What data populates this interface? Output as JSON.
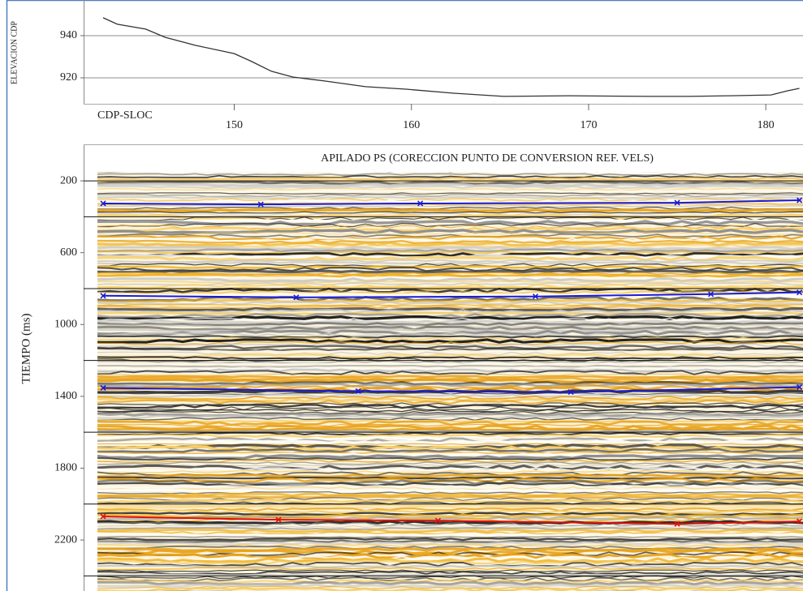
{
  "chart_data": [
    {
      "type": "line",
      "y_label": "ELEVACION CDP",
      "x_label": "CDP-SLOC",
      "xlim": [
        141.5,
        182.1
      ],
      "xticks": [
        150,
        160,
        170,
        180
      ],
      "ylim": [
        907.7,
        956.9
      ],
      "yticks": [
        920,
        940
      ],
      "grid": true,
      "series": [
        {
          "color": "#333333",
          "x": [
            142.6,
            143.4,
            145.0,
            146.1,
            147.8,
            150.0,
            151.0,
            152.1,
            153.3,
            155.1,
            157.4,
            159.7,
            162.4,
            165.2,
            168.9,
            173.4,
            175.7,
            178.0,
            180.3,
            181.2,
            181.9
          ],
          "values": [
            948.5,
            945.4,
            943.1,
            939.2,
            935.4,
            931.5,
            927.7,
            923.1,
            920.4,
            918.5,
            915.8,
            914.6,
            912.7,
            911.2,
            911.5,
            911.2,
            911.2,
            911.5,
            911.9,
            913.8,
            915.0
          ]
        }
      ]
    },
    {
      "type": "line",
      "title": "APILADO PS (CORECCION PUNTO DE CONVERSION REF. VELS)",
      "y_label": "TIEMPO (ms)",
      "xlim": [
        141.5,
        182.1
      ],
      "ylim": [
        150,
        2484
      ],
      "y_inverted": true,
      "yticks": [
        200,
        600,
        1000,
        1400,
        1800,
        2200
      ],
      "grid_lines": [
        200,
        400,
        800,
        1200,
        1600,
        2000,
        2400
      ],
      "series": [
        {
          "color": "#1a1ad8",
          "x": [
            142.6,
            151.5,
            160.5,
            175.0,
            181.9
          ],
          "values": [
            326,
            331,
            326,
            322,
            308
          ]
        },
        {
          "color": "#1a1ad8",
          "x": [
            142.6,
            153.5,
            167.0,
            176.9,
            181.9
          ],
          "values": [
            840,
            849,
            844,
            831,
            821
          ]
        },
        {
          "color": "#1a1ad8",
          "x": [
            142.6,
            157.0,
            169.0,
            181.9
          ],
          "values": [
            1353,
            1371,
            1376,
            1349
          ]
        },
        {
          "color": "#e01010",
          "x": [
            142.6,
            152.5,
            161.5,
            175.0,
            181.9
          ],
          "values": [
            2069,
            2087,
            2092,
            2110,
            2096
          ]
        }
      ]
    }
  ]
}
